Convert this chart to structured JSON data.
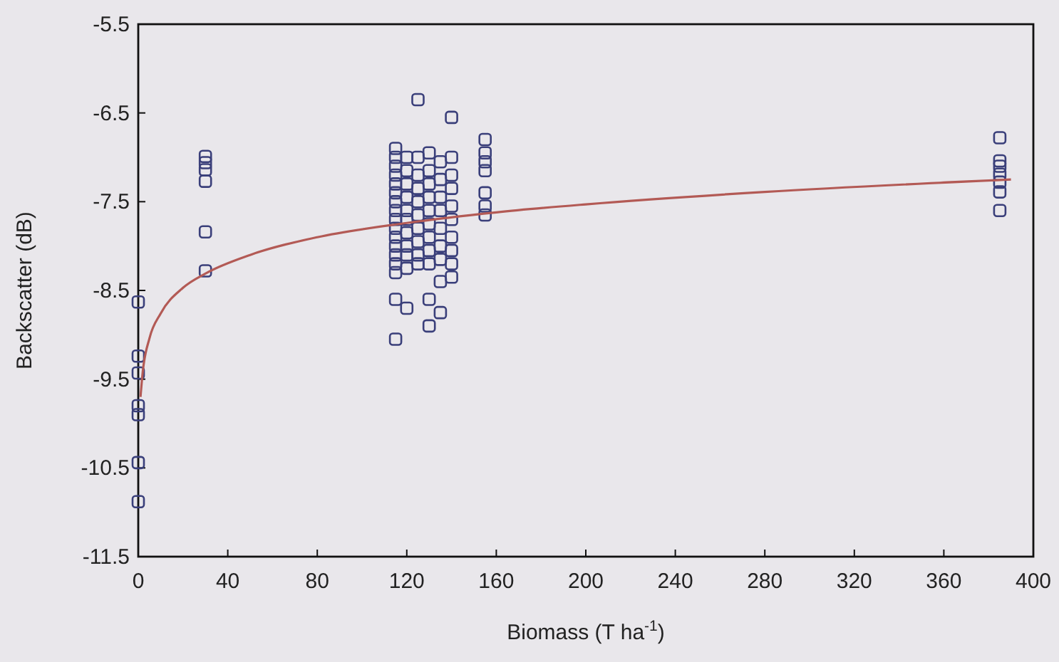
{
  "chart_data": {
    "type": "scatter",
    "xlabel": "Biomass (T ha$^{-1}$)",
    "ylabel": "Backscatter (dB)",
    "xlim": [
      0,
      400
    ],
    "ylim": [
      -11.5,
      -5.5
    ],
    "xticks": [
      0,
      40,
      80,
      120,
      160,
      200,
      240,
      280,
      320,
      360,
      400
    ],
    "yticks": [
      -5.5,
      -6.5,
      -7.5,
      -8.5,
      -9.5,
      -10.5,
      -11.5
    ],
    "grid": false,
    "series": [
      {
        "marker": "square",
        "color": "#3a3f7a",
        "x": [
          0,
          0,
          0,
          0,
          0,
          0,
          0,
          30,
          30,
          30,
          30,
          30,
          30,
          115,
          115,
          115,
          115,
          115,
          115,
          115,
          115,
          115,
          115,
          115,
          115,
          115,
          115,
          115,
          115,
          115,
          120,
          120,
          120,
          120,
          120,
          120,
          120,
          120,
          120,
          120,
          120,
          125,
          125,
          125,
          125,
          125,
          125,
          125,
          125,
          125,
          125,
          130,
          130,
          130,
          130,
          130,
          130,
          130,
          130,
          130,
          130,
          130,
          135,
          135,
          135,
          135,
          135,
          135,
          135,
          135,
          135,
          140,
          140,
          140,
          140,
          140,
          140,
          140,
          140,
          140,
          140,
          155,
          155,
          155,
          155,
          155,
          155,
          155,
          385,
          385,
          385,
          385,
          385,
          385,
          385
        ],
        "values": [
          -8.63,
          -9.24,
          -9.43,
          -9.8,
          -9.9,
          -10.44,
          -10.88,
          -6.99,
          -7.06,
          -7.14,
          -7.27,
          -7.84,
          -8.28,
          -6.9,
          -7.0,
          -7.1,
          -7.2,
          -7.3,
          -7.4,
          -7.5,
          -7.6,
          -7.7,
          -7.8,
          -7.9,
          -8.0,
          -8.1,
          -8.2,
          -8.3,
          -8.6,
          -9.05,
          -7.0,
          -7.15,
          -7.3,
          -7.45,
          -7.6,
          -7.7,
          -7.85,
          -8.0,
          -8.1,
          -8.25,
          -8.7,
          -6.35,
          -7.0,
          -7.2,
          -7.35,
          -7.5,
          -7.65,
          -7.8,
          -7.95,
          -8.1,
          -8.2,
          -6.95,
          -7.15,
          -7.3,
          -7.45,
          -7.6,
          -7.75,
          -7.9,
          -8.05,
          -8.2,
          -8.6,
          -8.9,
          -7.05,
          -7.25,
          -7.45,
          -7.6,
          -7.8,
          -8.0,
          -8.15,
          -8.4,
          -8.75,
          -6.55,
          -7.0,
          -7.2,
          -7.35,
          -7.55,
          -7.7,
          -7.9,
          -8.05,
          -8.2,
          -8.35,
          -6.8,
          -6.95,
          -7.05,
          -7.15,
          -7.4,
          -7.55,
          -7.65,
          -6.78,
          -7.04,
          -7.1,
          -7.19,
          -7.28,
          -7.39,
          -7.6
        ]
      },
      {
        "type": "line",
        "marker": "none",
        "color": "#b35a55",
        "x": [
          1,
          2,
          5,
          10,
          20,
          30,
          50,
          80,
          120,
          160,
          200,
          280,
          390
        ],
        "values": [
          -9.7,
          -9.42,
          -9.04,
          -8.76,
          -8.47,
          -8.31,
          -8.1,
          -7.9,
          -7.74,
          -7.62,
          -7.53,
          -7.39,
          -7.25
        ]
      }
    ]
  }
}
